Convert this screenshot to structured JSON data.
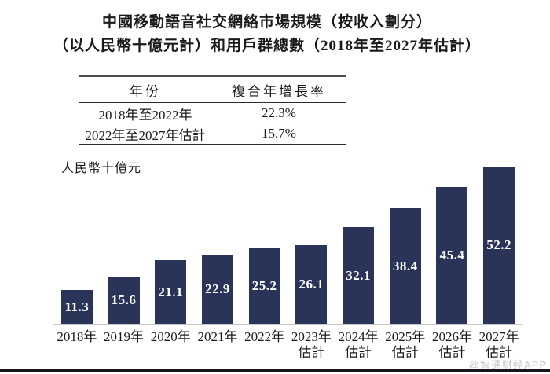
{
  "title": {
    "line1": "中國移動語音社交網絡市場規模（按收入劃分）",
    "line2": "（以人民幣十億元計）和用戶群總數（2018年至2027年估計）"
  },
  "cagr_table": {
    "headers": [
      "年份",
      "複合年增長率"
    ],
    "rows": [
      {
        "period": "2018年至2022年",
        "cagr": "22.3%"
      },
      {
        "period": "2022年至2027年估計",
        "cagr": "15.7%"
      }
    ]
  },
  "chart_data": {
    "type": "bar",
    "title": "中國移動語音社交網絡市場規模（按收入劃分）（以人民幣十億元計）和用戶群總數（2018年至2027年估計）",
    "ylabel": "人民幣十億元",
    "xlabel": "",
    "categories": [
      "2018年",
      "2019年",
      "2020年",
      "2021年",
      "2022年",
      "2023年\n估計",
      "2024年\n估計",
      "2025年\n估計",
      "2026年\n估計",
      "2027年\n估計"
    ],
    "values": [
      11.3,
      15.6,
      21.1,
      22.9,
      25.2,
      26.1,
      32.1,
      38.4,
      45.4,
      52.2
    ],
    "ylim": [
      0,
      55
    ],
    "grid": false,
    "legend_position": "none",
    "bar_color": "#293458",
    "value_label_color": "#ffffff",
    "axis_line_color": "#c8c8c8"
  },
  "watermark": "@智通财经APP"
}
